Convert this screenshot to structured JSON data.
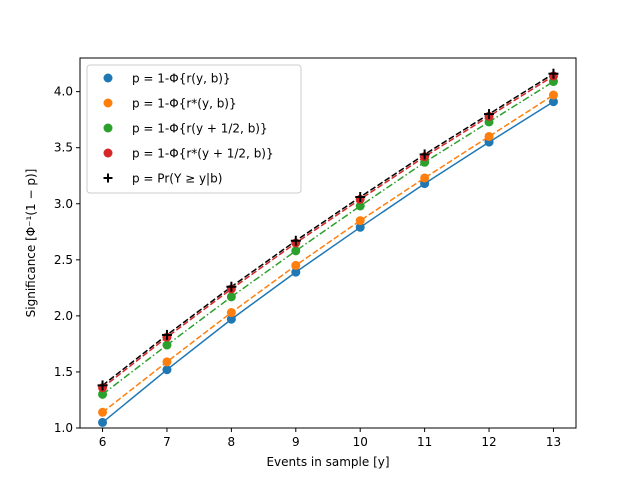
{
  "chart_data": {
    "type": "scatter",
    "title": "",
    "xlabel": "Events in sample [y]",
    "ylabel": "Significance [Φ⁻¹(1 − p)]",
    "xlim": [
      5.65,
      13.35
    ],
    "ylim": [
      1.0,
      4.3
    ],
    "xticks": [
      6,
      7,
      8,
      9,
      10,
      11,
      12,
      13
    ],
    "yticks": [
      1.0,
      1.5,
      2.0,
      2.5,
      3.0,
      3.5,
      4.0
    ],
    "x": [
      6,
      7,
      8,
      9,
      10,
      11,
      12,
      13
    ],
    "grid": false,
    "legend_position": "upper-left",
    "series": [
      {
        "name": "p = 1-Φ{r(y, b)}",
        "color": "#1f77b4",
        "marker": "circle",
        "line_style": "solid",
        "values": [
          1.05,
          1.52,
          1.97,
          2.39,
          2.79,
          3.18,
          3.55,
          3.91
        ],
        "line_values": [
          1.05,
          1.52,
          1.97,
          2.39,
          2.79,
          3.18,
          3.55,
          3.91
        ]
      },
      {
        "name": "p = 1-Φ{r*(y, b)}",
        "color": "#ff7f0e",
        "marker": "circle",
        "line_style": "dashed",
        "values": [
          1.14,
          1.59,
          2.03,
          2.45,
          2.85,
          3.23,
          3.6,
          3.97
        ],
        "line_values": [
          1.14,
          1.59,
          2.03,
          2.45,
          2.85,
          3.23,
          3.6,
          3.97
        ]
      },
      {
        "name": "p = 1-Φ{r(y + 1/2, b)}",
        "color": "#2ca02c",
        "marker": "circle",
        "line_style": "dashdot",
        "values": [
          1.3,
          1.74,
          2.17,
          2.58,
          2.98,
          3.37,
          3.73,
          4.09
        ],
        "line_values": [
          1.3,
          1.74,
          2.17,
          2.58,
          2.98,
          3.37,
          3.73,
          4.09
        ]
      },
      {
        "name": "p = 1-Φ{r*(y + 1/2, b)}",
        "color": "#d62728",
        "marker": "circle",
        "line_style": "dashed",
        "values": [
          1.36,
          1.81,
          2.24,
          2.65,
          3.04,
          3.42,
          3.78,
          4.14
        ],
        "line_values": [
          1.36,
          1.81,
          2.24,
          2.65,
          3.04,
          3.42,
          3.78,
          4.14
        ]
      },
      {
        "name": "p = Pr(Y ≥ y|b)",
        "color": "#000000",
        "marker": "plus",
        "line_style": "dashed",
        "values": [
          1.38,
          1.83,
          2.26,
          2.67,
          3.06,
          3.44,
          3.8,
          4.16
        ],
        "line_values": [
          1.38,
          1.83,
          2.26,
          2.67,
          3.06,
          3.44,
          3.8,
          4.16
        ]
      }
    ]
  }
}
